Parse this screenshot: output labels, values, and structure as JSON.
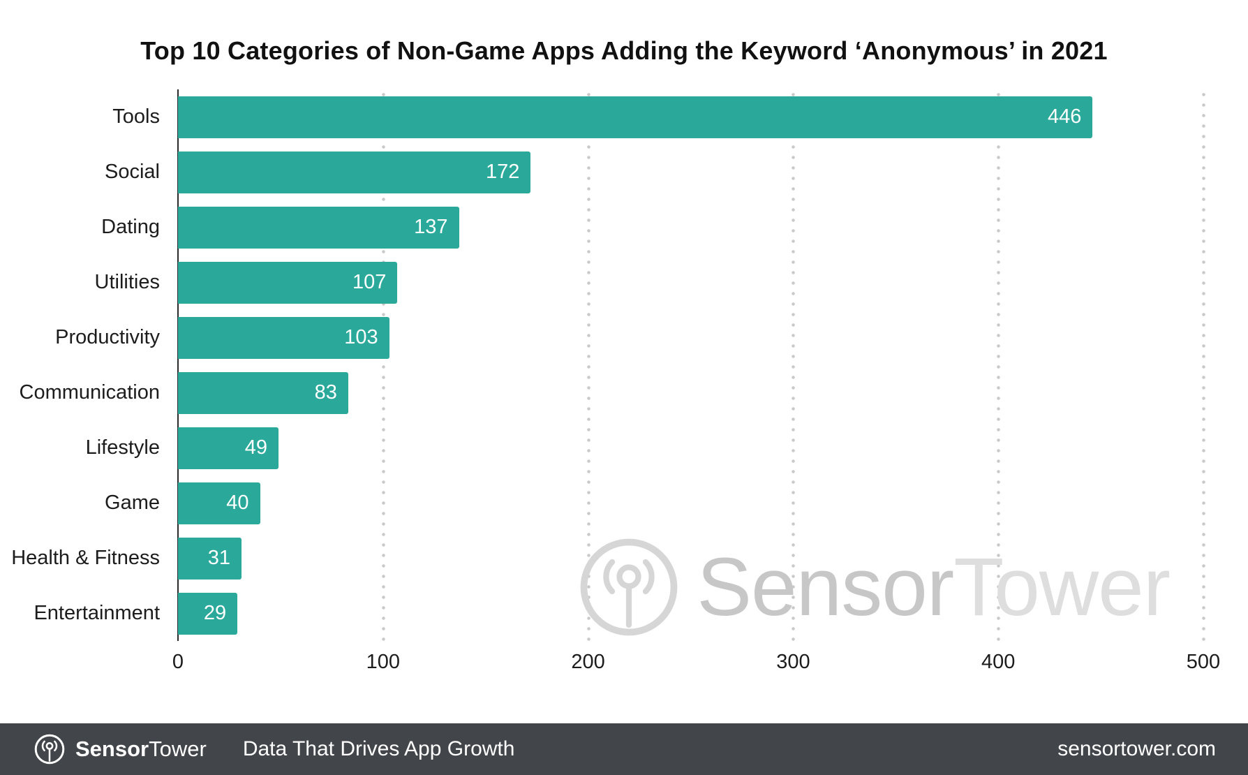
{
  "title": "Top 10 Categories of Non-Game Apps Adding the Keyword ‘Anonymous’ in 2021",
  "chart_data": {
    "type": "bar",
    "orientation": "horizontal",
    "title": "Top 10 Categories of Non-Game Apps Adding the Keyword ‘Anonymous’ in 2021",
    "categories": [
      "Tools",
      "Social",
      "Dating",
      "Utilities",
      "Productivity",
      "Communication",
      "Lifestyle",
      "Game",
      "Health & Fitness",
      "Entertainment"
    ],
    "values": [
      446,
      172,
      137,
      107,
      103,
      83,
      49,
      40,
      31,
      29
    ],
    "xlabel": "",
    "ylabel": "",
    "xlim": [
      0,
      500
    ],
    "x_ticks": [
      0,
      100,
      200,
      300,
      400,
      500
    ],
    "grid": "dotted-vertical",
    "bar_color": "#2aa99b",
    "value_label_color": "#ffffff",
    "legend": "none"
  },
  "watermark": {
    "brand_bold": "Sensor",
    "brand_light": "Tower"
  },
  "footer": {
    "brand_bold": "Sensor",
    "brand_regular": "Tower",
    "tagline": "Data That Drives App Growth",
    "website": "sensortower.com",
    "background": "#42464a"
  }
}
